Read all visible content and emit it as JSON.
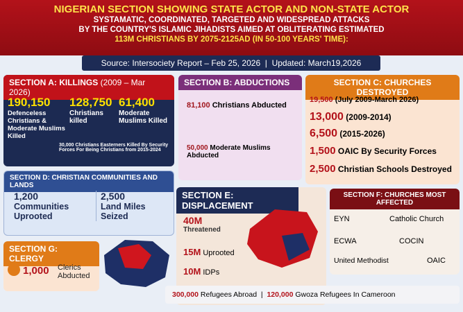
{
  "header": {
    "title": "NIGERIAN SECTION SHOWING STATE ACTOR AND NON-STATE ACTOR",
    "lines": [
      "SYSTAMATIC, COORDINATED, TARGETED AND WIDESPREAD ATTACKS",
      "BY THE COUNTRY'S ISLAMIC JIHADISTS AIMED AT OBLITERATING ESTIMATED",
      "113M CHRISTIANS BY 2075-2125AD (IN 50-100 YEARS' TIME):"
    ],
    "source": "Source: Intersociety Report – Feb 25, 2026",
    "updated": "Updated: March19,2026"
  },
  "section_a": {
    "title": "SECTION A: KILLINGS",
    "period": "(2009 – Mar 2026)",
    "stats": [
      {
        "number": "190,150",
        "label": "Defenceless Christians & Moderate Muslims Killed"
      },
      {
        "number": "128,750",
        "label": "Christians killed"
      },
      {
        "number": "61,400",
        "label": "Moderate Muslims Killed"
      }
    ],
    "note": "30,000 Christians Easterners Killed By Security Forces For Being Christians from 2015-2024"
  },
  "section_b": {
    "title": "SECTION B: ABDUCTIONS",
    "stats": [
      {
        "number": "81,100",
        "label": "Christians Abducted"
      },
      {
        "number": "50,000",
        "label": "Moderate Muslims Abducted"
      }
    ]
  },
  "section_c": {
    "title": "SECTION C: CHURCHES DESTROYED",
    "stats": [
      {
        "number": "19,500",
        "label": "(July 2009-March 2026)"
      },
      {
        "number": "13,000",
        "label": "(2009-2014)"
      },
      {
        "number": "6,500",
        "label": "(2015-2026)"
      },
      {
        "number": "1,500",
        "label": "OAIC By Security Forces"
      },
      {
        "number": "2,500",
        "label": "Christian Schools Destroyed"
      }
    ]
  },
  "section_d": {
    "title": "SECTION D: CHRISTIAN COMMUNITIES AND LANDS",
    "stats": [
      {
        "number": "1,200",
        "label": "Communities Uprooted"
      },
      {
        "number": "2,500",
        "label": "Land Miles Seized"
      }
    ]
  },
  "section_e": {
    "title": "SECTION E: DISPLACEMENT",
    "stats": [
      {
        "number": "40M",
        "label": "Threatened"
      },
      {
        "number": "15M",
        "label": "Uprooted"
      },
      {
        "number": "10M",
        "label": "IDPs"
      },
      {
        "number": "300,000",
        "label": "Refugees Abroad"
      },
      {
        "number": "120,000",
        "label": "Gwoza Refugees In Cameroon"
      }
    ]
  },
  "section_f": {
    "title": "SECTION F: CHURCHES MOST AFFECTED",
    "churches": [
      "EYN",
      "Catholic Church",
      "ECWA",
      "COCIN",
      "United Methodist",
      "OAIC"
    ]
  },
  "section_g": {
    "title": "SECTION G: CLERGY",
    "number": "1,000",
    "label": "Clerics Abducted"
  }
}
